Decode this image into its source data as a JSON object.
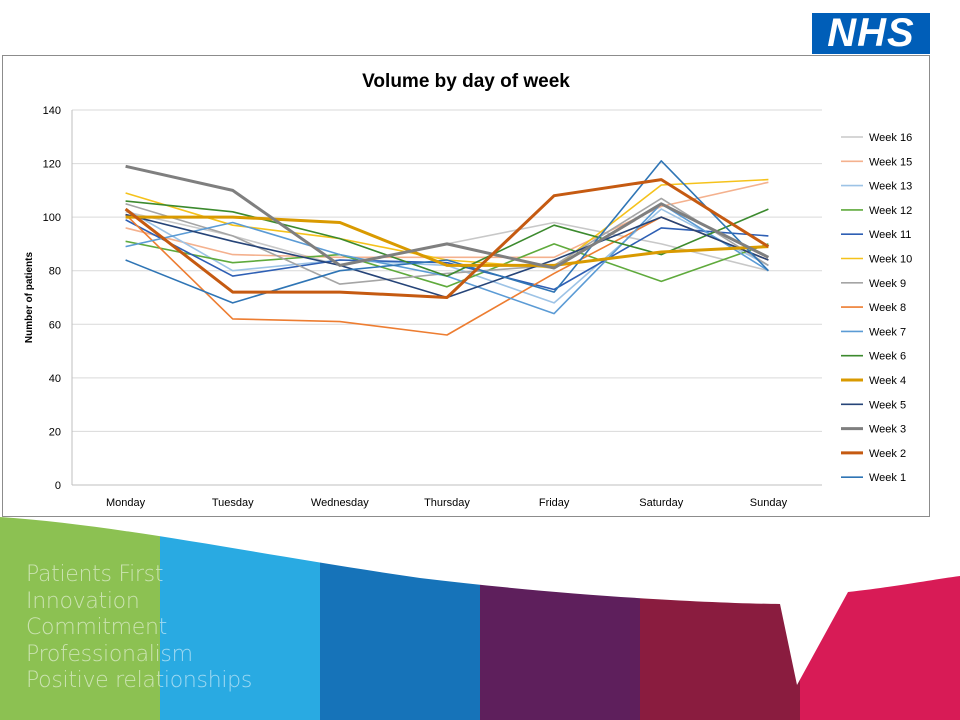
{
  "logo": {
    "text": "NHS",
    "color": "#005eb8"
  },
  "values": [
    "Patients First",
    "Innovation",
    "Commitment",
    "Professionalism",
    "Positive relationships"
  ],
  "footer_colors": [
    "#8cc152",
    "#29aae2",
    "#1673b9",
    "#5e1f5c",
    "#8a1c3f",
    "#d81b56"
  ],
  "chart_data": {
    "type": "line",
    "title": "Volume by day of week",
    "xlabel": "",
    "ylabel": "Number of patients",
    "ylim": [
      0,
      140
    ],
    "yticks": [
      0,
      20,
      40,
      60,
      80,
      100,
      120,
      140
    ],
    "grid": true,
    "legend_position": "right",
    "categories": [
      "Monday",
      "Tuesday",
      "Wednesday",
      "Thursday",
      "Friday",
      "Saturday",
      "Sunday"
    ],
    "series": [
      {
        "name": "Week 16",
        "color": "#c8c8c8",
        "bold": false,
        "values": [
          102,
          93,
          82,
          90,
          98,
          90,
          80
        ]
      },
      {
        "name": "Week 15",
        "color": "#f4b18e",
        "bold": false,
        "values": [
          96,
          86,
          85,
          85,
          85,
          104,
          113
        ]
      },
      {
        "name": "Week 13",
        "color": "#9dc3e6",
        "bold": false,
        "values": [
          103,
          80,
          84,
          82,
          68,
          103,
          82
        ]
      },
      {
        "name": "Week 12",
        "color": "#5faa3c",
        "bold": false,
        "values": [
          91,
          83,
          86,
          74,
          90,
          76,
          90
        ]
      },
      {
        "name": "Week 11",
        "color": "#2e5fb4",
        "bold": false,
        "values": [
          99,
          78,
          84,
          83,
          73,
          96,
          93
        ]
      },
      {
        "name": "Week 10",
        "color": "#f5c21b",
        "bold": false,
        "values": [
          109,
          97,
          92,
          84,
          81,
          112,
          114
        ]
      },
      {
        "name": "Week 9",
        "color": "#a5a5a5",
        "bold": false,
        "values": [
          105,
          93,
          75,
          79,
          82,
          107,
          82
        ]
      },
      {
        "name": "Week 8",
        "color": "#ed7d31",
        "bold": false,
        "values": [
          101,
          62,
          61,
          56,
          79,
          100,
          84
        ]
      },
      {
        "name": "Week 7",
        "color": "#5b9bd5",
        "bold": false,
        "values": [
          89,
          98,
          86,
          78,
          64,
          105,
          80
        ]
      },
      {
        "name": "Week 6",
        "color": "#3c8a2e",
        "bold": false,
        "values": [
          106,
          102,
          92,
          78,
          97,
          86,
          103
        ]
      },
      {
        "name": "Week 4",
        "color": "#d99a00",
        "bold": true,
        "values": [
          100,
          100,
          98,
          82,
          82,
          87,
          89
        ]
      },
      {
        "name": "Week 5",
        "color": "#264478",
        "bold": false,
        "values": [
          101,
          91,
          82,
          70,
          84,
          100,
          84
        ]
      },
      {
        "name": "Week 3",
        "color": "#7f7f7f",
        "bold": true,
        "values": [
          119,
          110,
          82,
          90,
          81,
          105,
          85
        ]
      },
      {
        "name": "Week 2",
        "color": "#c55a11",
        "bold": true,
        "values": [
          103,
          72,
          72,
          70,
          108,
          114,
          89
        ]
      },
      {
        "name": "Week 1",
        "color": "#2f75b5",
        "bold": false,
        "values": [
          84,
          68,
          80,
          84,
          72,
          121,
          80
        ]
      }
    ],
    "legend_order": [
      "Week 16",
      "Week 15",
      "Week 13",
      "Week 12",
      "Week 11",
      "Week 10",
      "Week 9",
      "Week 8",
      "Week 7",
      "Week 6",
      "Week 4",
      "Week 5",
      "Week 3",
      "Week 2",
      "Week 1"
    ]
  }
}
